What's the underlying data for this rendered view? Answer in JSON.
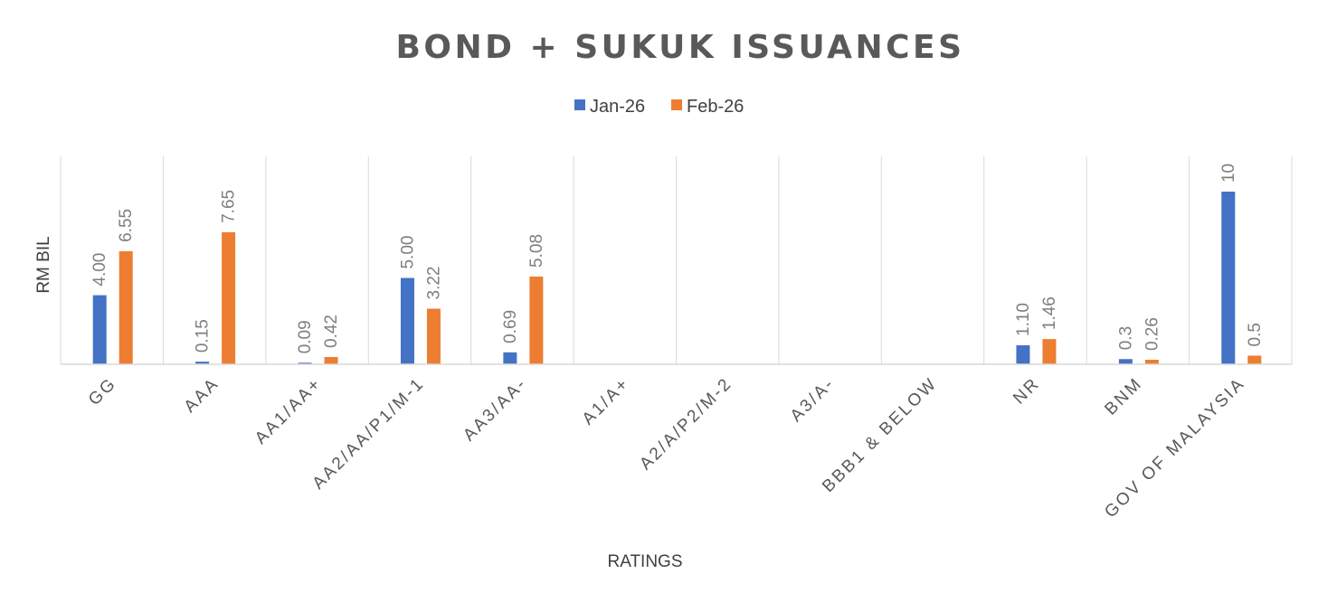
{
  "chart_data": {
    "type": "bar",
    "title": "BOND + SUKUK ISSUANCES",
    "xlabel": "RATINGS",
    "ylabel": "RM BIL",
    "ylim": [
      0,
      12
    ],
    "grid": false,
    "legend_position": "top-center",
    "categories": [
      "GG",
      "AAA",
      "AA1/AA+",
      "AA2/AA/P1/M-1",
      "AA3/AA-",
      "A1/A+",
      "A2/A/P2/M-2",
      "A3/A-",
      "BBB1 & BELOW",
      "NR",
      "BNM",
      "GOV OF MALAYSIA"
    ],
    "series": [
      {
        "name": "Jan-26",
        "color": "#4472c4",
        "values": [
          4.0,
          0.15,
          0.09,
          5.0,
          0.69,
          null,
          null,
          null,
          null,
          1.1,
          0.3,
          10
        ],
        "labels": [
          "4.00",
          "0.15",
          "0.09",
          "5.00",
          "0.69",
          "",
          "",
          "",
          "",
          "1.10",
          "0.3",
          "10"
        ]
      },
      {
        "name": "Feb-26",
        "color": "#ed7d31",
        "values": [
          6.55,
          7.65,
          0.42,
          3.22,
          5.08,
          null,
          null,
          null,
          null,
          1.46,
          0.26,
          0.5
        ],
        "labels": [
          "6.55",
          "7.65",
          "0.42",
          "3.22",
          "5.08",
          "",
          "",
          "",
          "",
          "1.46",
          "0.26",
          "0.5"
        ]
      }
    ]
  }
}
